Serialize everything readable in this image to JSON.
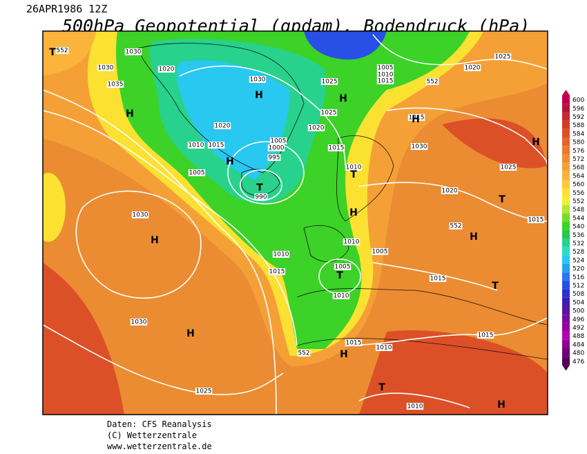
{
  "header": {
    "timestamp": "26APR1986 12Z",
    "title": "500hPa Geopotential (gpdam), Bodendruck (hPa)"
  },
  "map": {
    "isobar_labels": [
      552,
      1030,
      1020,
      1030,
      1035,
      1030,
      1025,
      1005,
      1010,
      1015,
      1020,
      1025,
      552,
      1025,
      1020,
      1020,
      1010,
      1015,
      1005,
      1000,
      995,
      990,
      1005,
      1015,
      1010,
      1015,
      1030,
      1025,
      1020,
      1030,
      552,
      1015,
      1010,
      1010,
      1005,
      1015,
      1005,
      1015,
      1010,
      1030,
      1015,
      1015,
      1010,
      552,
      1025,
      1010
    ],
    "centers": [
      "T",
      "H",
      "H",
      "H",
      "H",
      "T",
      "T",
      "H",
      "H",
      "T",
      "H",
      "H",
      "T",
      "H",
      "H",
      "H",
      "T",
      "H",
      "T"
    ]
  },
  "colorbar": {
    "levels": [
      {
        "value": 600,
        "color": "#c0004e"
      },
      {
        "value": 596,
        "color": "#b4143c"
      },
      {
        "value": 592,
        "color": "#c8282d"
      },
      {
        "value": 588,
        "color": "#d23c28"
      },
      {
        "value": 584,
        "color": "#dc5028"
      },
      {
        "value": 580,
        "color": "#e6642a"
      },
      {
        "value": 576,
        "color": "#eb782d"
      },
      {
        "value": 572,
        "color": "#f08c32"
      },
      {
        "value": 568,
        "color": "#f5a037"
      },
      {
        "value": 564,
        "color": "#fab43c"
      },
      {
        "value": 560,
        "color": "#ffc83c"
      },
      {
        "value": 556,
        "color": "#ffe132"
      },
      {
        "value": 552,
        "color": "#f0f032"
      },
      {
        "value": 548,
        "color": "#b4e632"
      },
      {
        "value": 544,
        "color": "#78dc28"
      },
      {
        "value": 540,
        "color": "#3cd228"
      },
      {
        "value": 536,
        "color": "#28c850"
      },
      {
        "value": 532,
        "color": "#28d28c"
      },
      {
        "value": 528,
        "color": "#28dcc8"
      },
      {
        "value": 524,
        "color": "#28c8f0"
      },
      {
        "value": 520,
        "color": "#28a0f0"
      },
      {
        "value": 516,
        "color": "#2878f0"
      },
      {
        "value": 512,
        "color": "#2850e6"
      },
      {
        "value": 508,
        "color": "#2832d2"
      },
      {
        "value": 504,
        "color": "#3c1eb4"
      },
      {
        "value": 500,
        "color": "#5a14a0"
      },
      {
        "value": 496,
        "color": "#780aa0"
      },
      {
        "value": 492,
        "color": "#9600a0"
      },
      {
        "value": 488,
        "color": "#b400b4"
      },
      {
        "value": 484,
        "color": "#8c0096"
      },
      {
        "value": 480,
        "color": "#6e0078"
      },
      {
        "value": 476,
        "color": "#50005a"
      }
    ]
  },
  "footer": {
    "source": "Daten: CFS Reanalysis",
    "copyright": "(C) Wetterzentrale",
    "url": "www.wetterzentrale.de"
  }
}
